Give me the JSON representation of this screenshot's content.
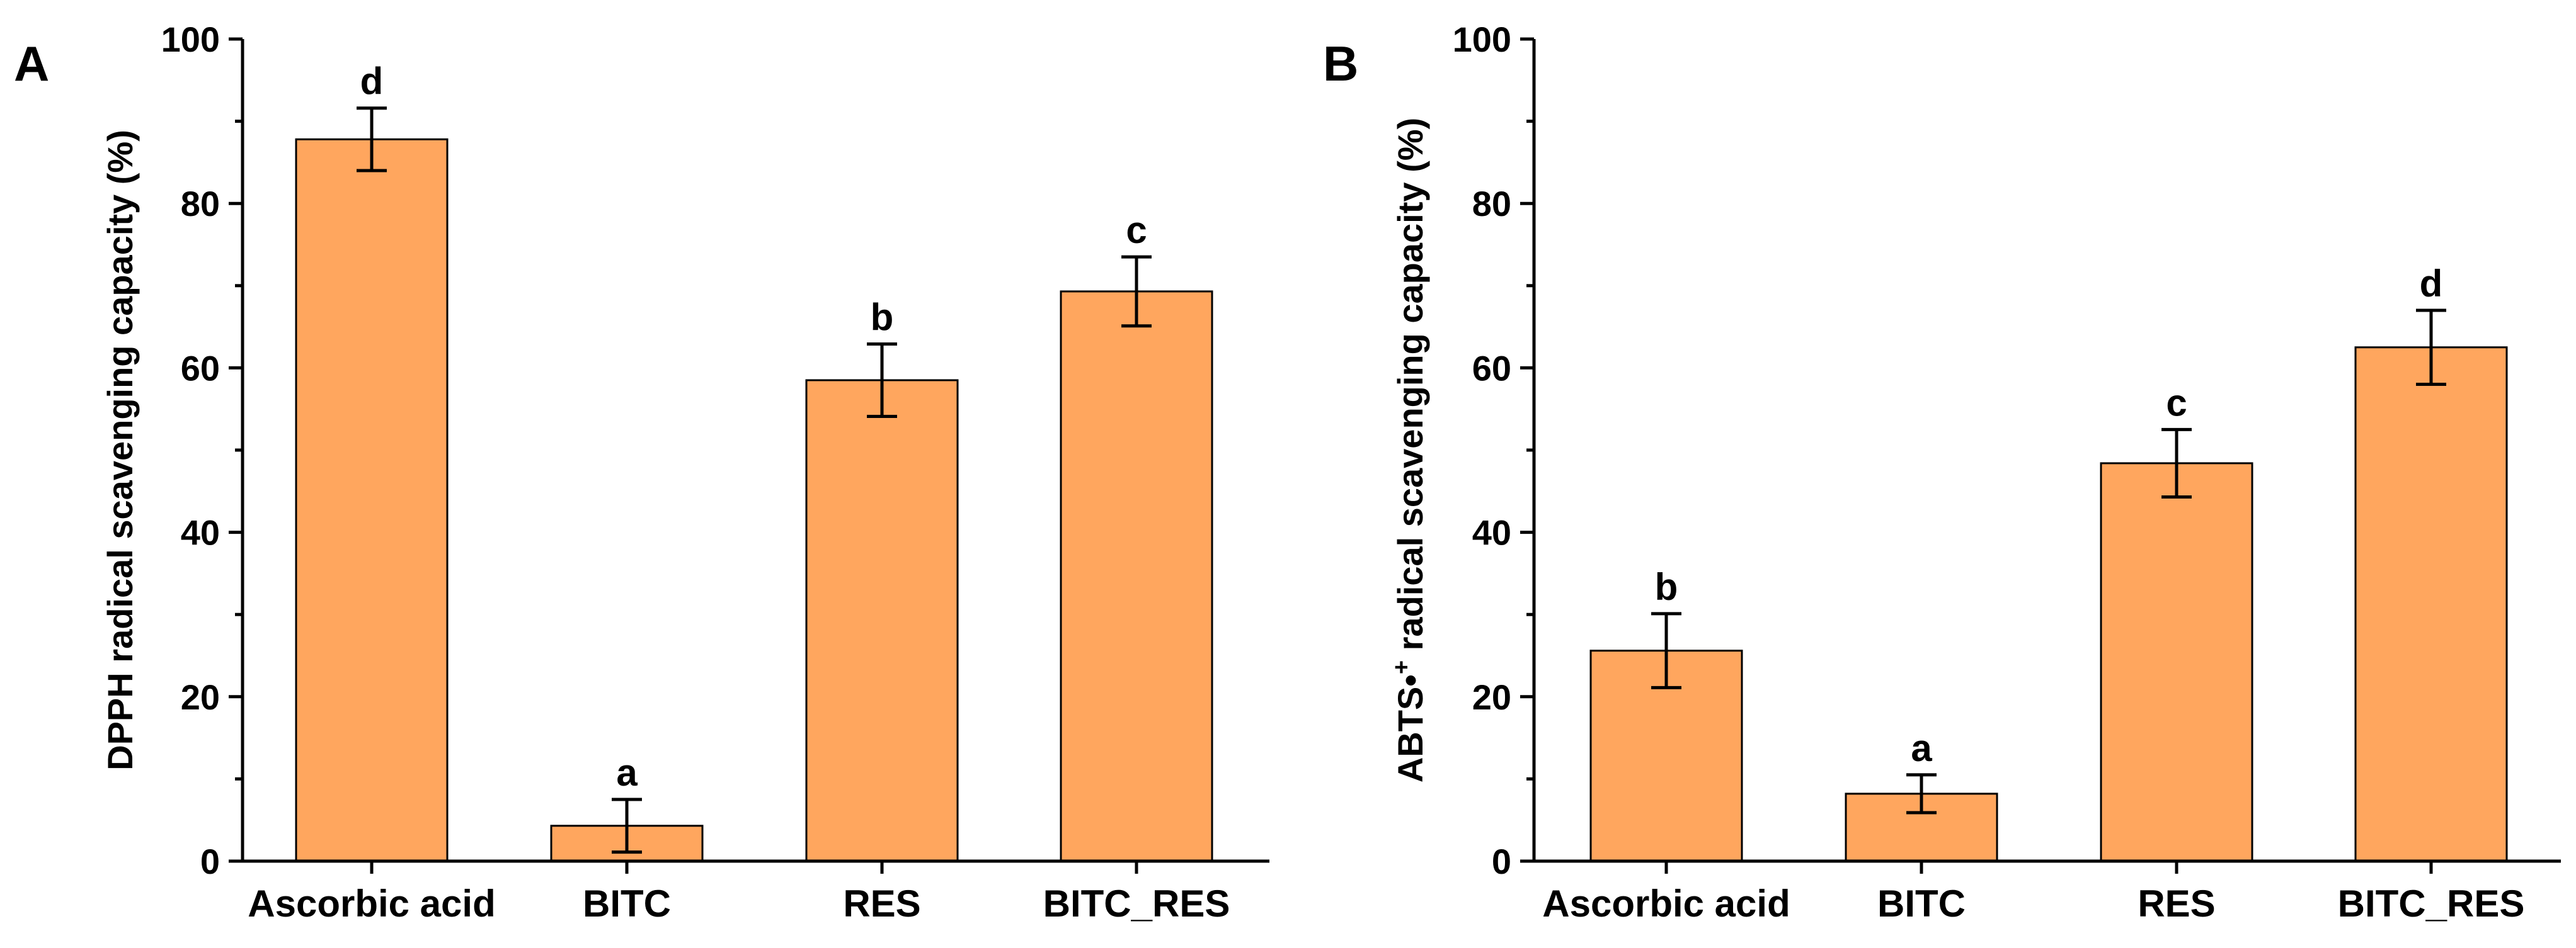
{
  "chart_data": [
    {
      "type": "bar",
      "panel": "A",
      "title": "",
      "xlabel": "",
      "ylabel": "DPPH radical scavenging capacity (%)",
      "ylabel_parts": [
        "DPPH radical scavenging capacity (%)"
      ],
      "ylim": [
        0,
        100
      ],
      "yticks": [
        0,
        20,
        40,
        60,
        80,
        100
      ],
      "categories": [
        "Ascorbic acid",
        "BITC",
        "RES",
        "BITC_RES"
      ],
      "values": [
        87.8,
        4.3,
        58.5,
        69.3
      ],
      "errors": [
        3.8,
        3.2,
        4.4,
        4.2
      ],
      "significance": [
        "d",
        "a",
        "b",
        "c"
      ],
      "bar_color": "#FFA65E"
    },
    {
      "type": "bar",
      "panel": "B",
      "title": "",
      "xlabel": "",
      "ylabel": "ABTS•+ radical scavenging capacity (%)",
      "ylabel_parts": [
        "ABTS•",
        "+",
        " radical scavenging capacity (%)"
      ],
      "ylim": [
        0,
        100
      ],
      "yticks": [
        0,
        20,
        40,
        60,
        80,
        100
      ],
      "categories": [
        "Ascorbic acid",
        "BITC",
        "RES",
        "BITC_RES"
      ],
      "values": [
        25.6,
        8.2,
        48.4,
        62.5
      ],
      "errors": [
        4.5,
        2.3,
        4.1,
        4.5
      ],
      "significance": [
        "b",
        "a",
        "c",
        "d"
      ],
      "bar_color": "#FFA65E"
    }
  ]
}
